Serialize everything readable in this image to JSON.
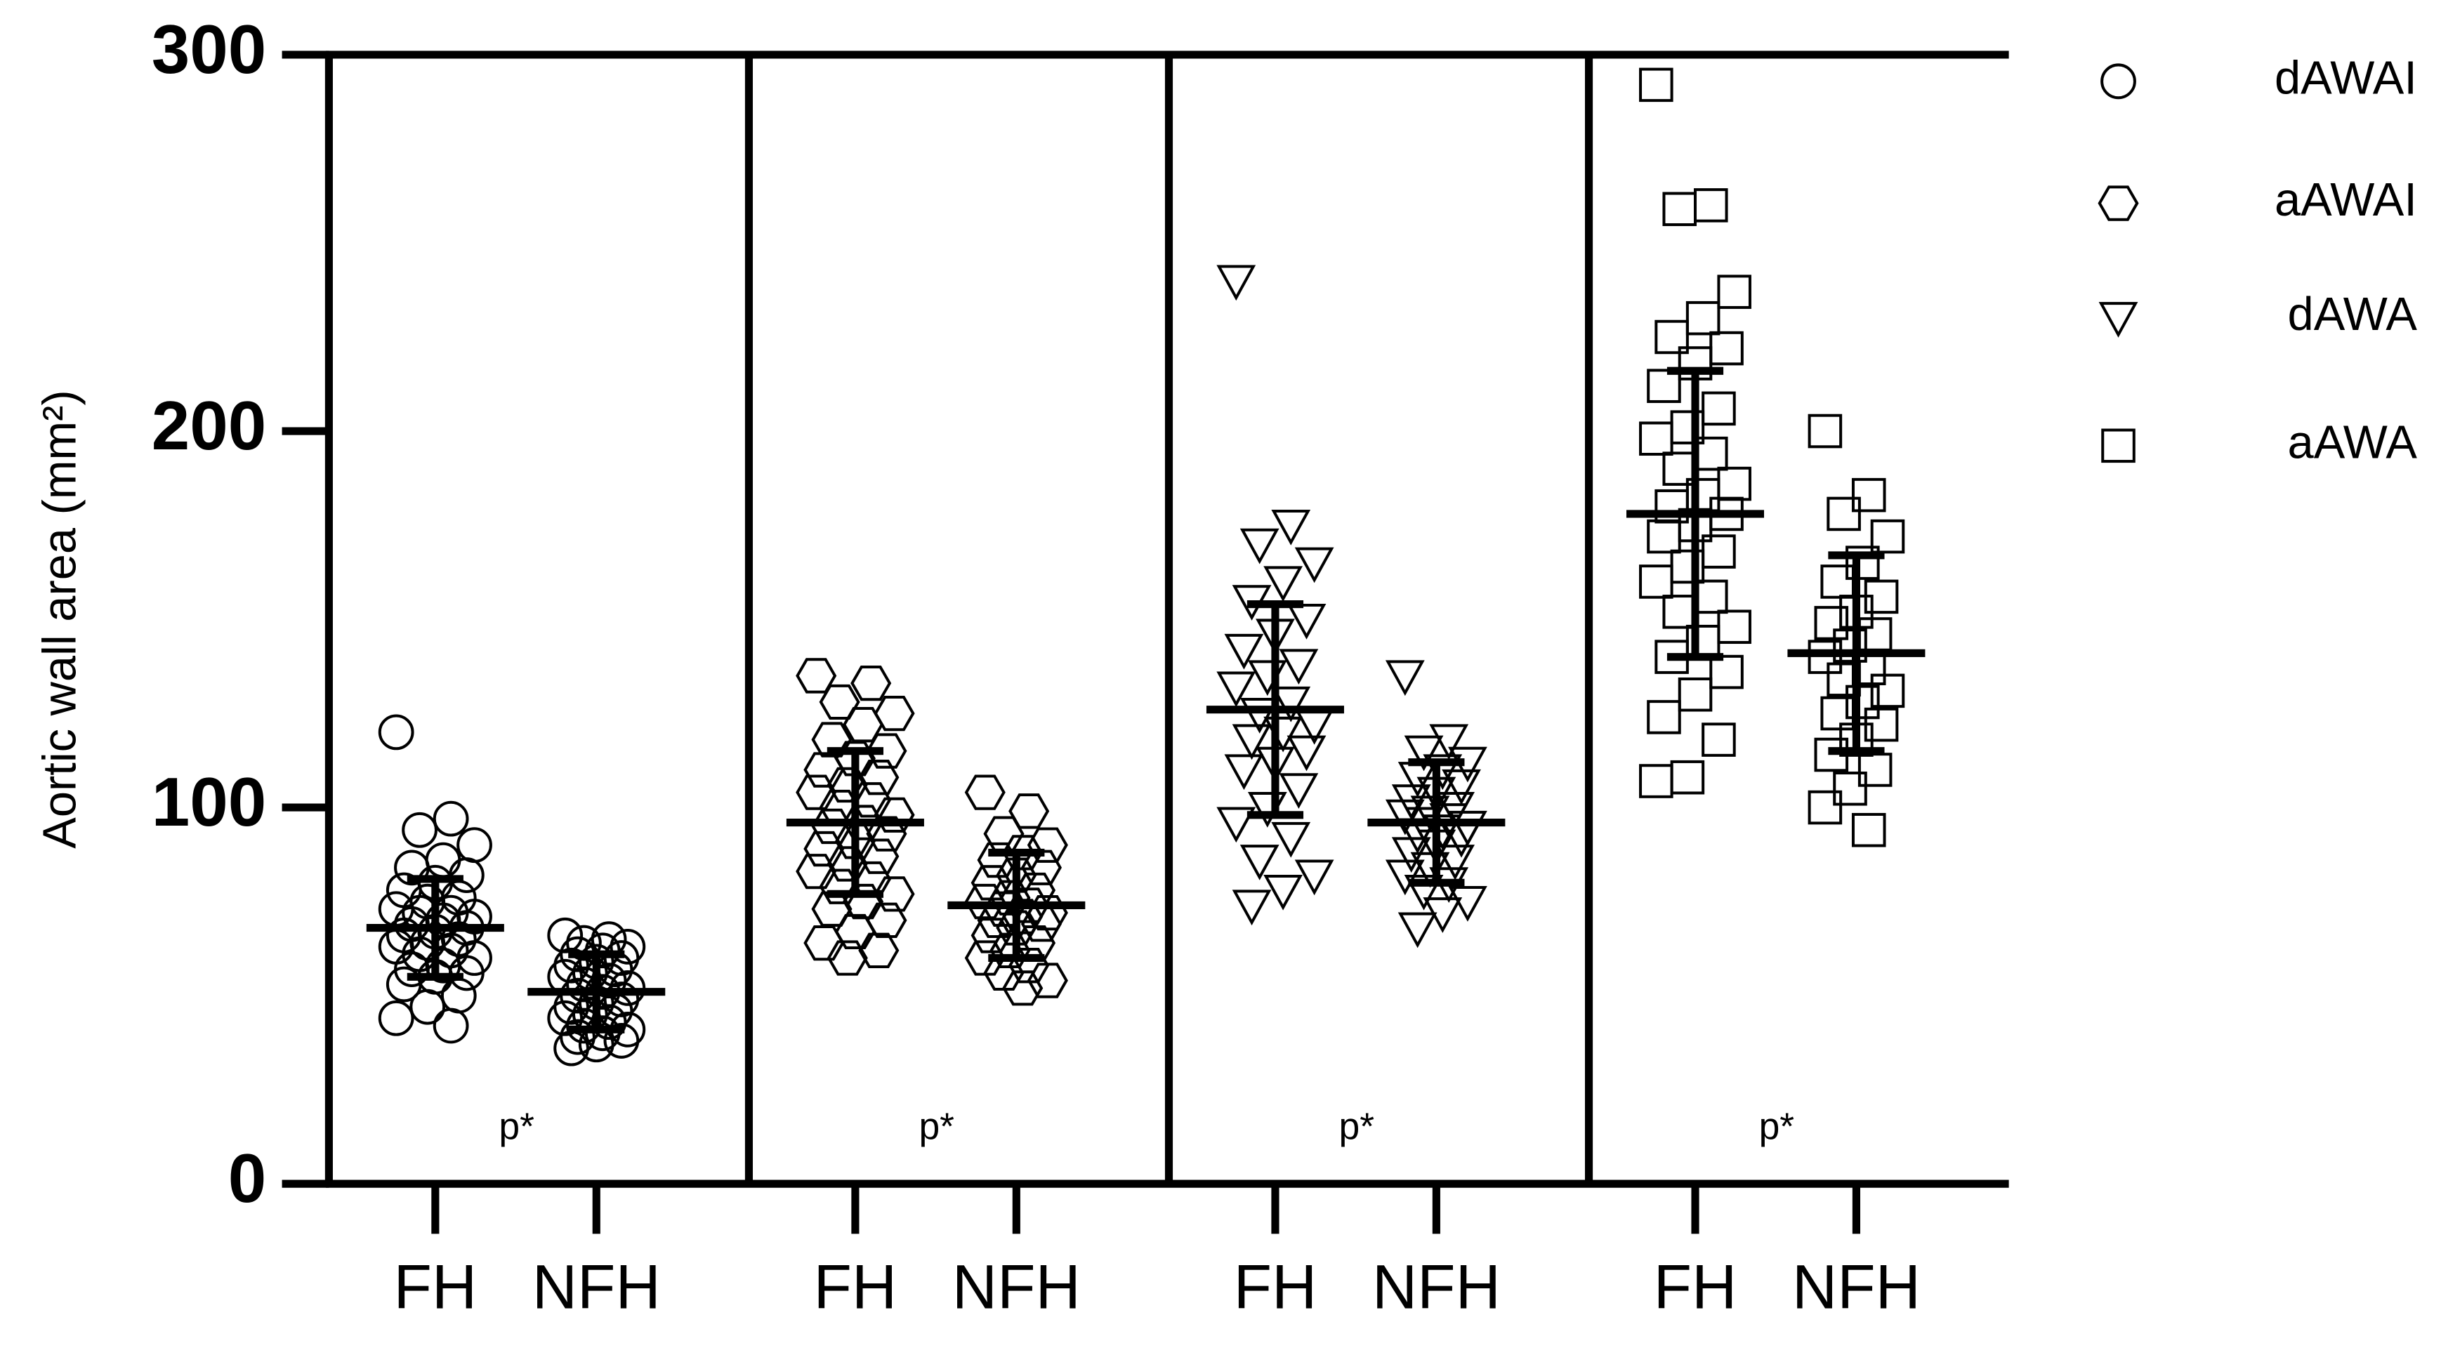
{
  "chart_data": {
    "type": "dotplot",
    "ylabel": "Aortic wall area (mm²)",
    "ylim": [
      0,
      300
    ],
    "yticks": [
      0,
      100,
      200,
      300
    ],
    "categories": [
      "FH",
      "NFH"
    ],
    "series": [
      {
        "name": "dAWAI",
        "marker": "circle",
        "annotation": "p*",
        "groups": [
          {
            "values": [
              120,
              97,
              94,
              90,
              86,
              84,
              82,
              80,
              78,
              76,
              75,
              73,
              72,
              72,
              71,
              70,
              69,
              68,
              67,
              66,
              65,
              64,
              63,
              62,
              61,
              60,
              58,
              57,
              56,
              55,
              53,
              50,
              47,
              44,
              42
            ],
            "mean": 68,
            "sd": 13
          },
          {
            "values": [
              66,
              65,
              64,
              63,
              62,
              61,
              60,
              59,
              58,
              57,
              56,
              55,
              54,
              53,
              52,
              51,
              50,
              49,
              48,
              47,
              46,
              45,
              44,
              43,
              42,
              41,
              40,
              39,
              38,
              37,
              36
            ],
            "mean": 51,
            "sd": 10
          }
        ]
      },
      {
        "name": "aAWAI",
        "marker": "hexagon",
        "annotation": "p*",
        "groups": [
          {
            "values": [
              135,
              133,
              128,
              125,
              122,
              118,
              115,
              113,
              110,
              108,
              106,
              104,
              102,
              100,
              98,
              96,
              95,
              93,
              91,
              89,
              87,
              85,
              83,
              81,
              79,
              77,
              75,
              73,
              70,
              67,
              64,
              62,
              60
            ],
            "mean": 96,
            "sd": 19
          },
          {
            "values": [
              104,
              99,
              93,
              90,
              88,
              86,
              84,
              82,
              80,
              78,
              76,
              75,
              74,
              73,
              72,
              71,
              70,
              69,
              68,
              66,
              64,
              62,
              60,
              58,
              56,
              54,
              52
            ],
            "mean": 74,
            "sd": 14
          }
        ]
      },
      {
        "name": "dAWA",
        "marker": "triangle-down",
        "annotation": "p*",
        "groups": [
          {
            "values": [
              240,
              175,
              170,
              165,
              160,
              155,
              150,
              146,
              142,
              138,
              135,
              132,
              128,
              125,
              122,
              120,
              118,
              115,
              112,
              110,
              105,
              100,
              96,
              92,
              86,
              82,
              78,
              74
            ],
            "mean": 126,
            "sd": 28
          },
          {
            "values": [
              135,
              118,
              115,
              112,
              110,
              108,
              106,
              104,
              102,
              100,
              99,
              98,
              97,
              96,
              95,
              94,
              93,
              92,
              90,
              88,
              86,
              84,
              82,
              80,
              78,
              75,
              72,
              68
            ],
            "mean": 96,
            "sd": 16
          }
        ]
      },
      {
        "name": "aAWA",
        "marker": "square",
        "annotation": "p*",
        "groups": [
          {
            "values": [
              292,
              260,
              259,
              237,
              230,
              225,
              222,
              218,
              212,
              206,
              201,
              198,
              194,
              190,
              186,
              183,
              180,
              178,
              175,
              172,
              168,
              164,
              160,
              156,
              152,
              148,
              144,
              140,
              136,
              130,
              124,
              118,
              108,
              107
            ],
            "mean": 178,
            "sd": 38
          },
          {
            "values": [
              200,
              183,
              178,
              172,
              165,
              160,
              156,
              152,
              149,
              146,
              143,
              140,
              137,
              134,
              131,
              128,
              125,
              122,
              118,
              114,
              110,
              105,
              100,
              94
            ],
            "mean": 141,
            "sd": 26
          }
        ]
      }
    ]
  }
}
